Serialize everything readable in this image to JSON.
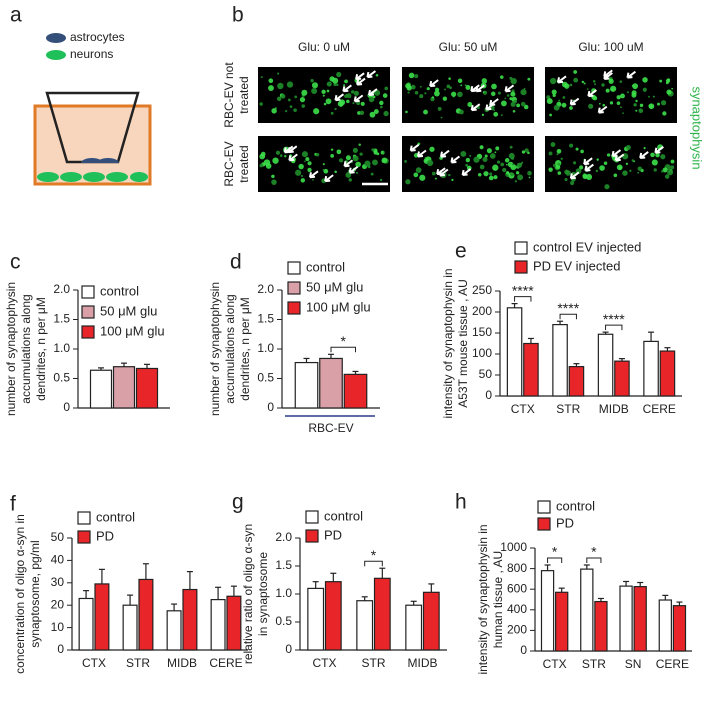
{
  "panel_labels": [
    "a",
    "b",
    "c",
    "d",
    "e",
    "f",
    "g",
    "h"
  ],
  "diagram": {
    "legend": [
      "astrocytes",
      "neurons"
    ]
  },
  "images": {
    "column_labels": [
      "Glu: 0 uM",
      "Glu: 50 uM",
      "Glu: 100 uM"
    ],
    "row_labels": [
      [
        "RBC-EV not",
        "treated"
      ],
      [
        "RBC-EV",
        "treated"
      ]
    ],
    "stain_label": "synaptophysin"
  },
  "chart_data": [
    {
      "type": "bar",
      "ylabel": [
        "number of synaptophysin",
        "accumulations  along",
        "dendrites, n per μM"
      ],
      "categories": [
        null
      ],
      "series": [
        {
          "name": "control",
          "color": "#ffffff",
          "values": [
            0.64
          ],
          "errors": [
            0.04
          ]
        },
        {
          "name": "50 μM glu",
          "color": "#d9a0a8",
          "values": [
            0.7
          ],
          "errors": [
            0.06
          ]
        },
        {
          "name": "100 μM glu",
          "color": "#e8262a",
          "values": [
            0.67
          ],
          "errors": [
            0.07
          ]
        }
      ],
      "ylim": [
        0,
        2
      ],
      "yticks": [
        0,
        0.5,
        {
          "value": 1,
          "label": "1.0"
        },
        1.5,
        {
          "value": 2,
          "label": "2.0"
        }
      ]
    },
    {
      "type": "bar",
      "ylabel": [
        "number of synaptophysin",
        "accumulations  along",
        "dendrites, n per μM"
      ],
      "xlabel": "RBC-EV",
      "categories": [
        null
      ],
      "series": [
        {
          "name": "control",
          "color": "#ffffff",
          "values": [
            0.77
          ],
          "errors": [
            0.07
          ]
        },
        {
          "name": "50 μM glu",
          "color": "#d9a0a8",
          "values": [
            0.84
          ],
          "errors": [
            0.07
          ]
        },
        {
          "name": "100 μM glu",
          "color": "#e8262a",
          "values": [
            0.57
          ],
          "errors": [
            0.05
          ]
        }
      ],
      "annotations": [
        {
          "label": "*",
          "series": [
            1,
            2
          ]
        }
      ],
      "ylim": [
        0,
        2
      ],
      "yticks": [
        0,
        0.5,
        {
          "value": 1,
          "label": "1.0"
        },
        1.5,
        {
          "value": 2,
          "label": "2.0"
        }
      ]
    },
    {
      "type": "bar",
      "ylabel": [
        "intensity of synaptophysin in",
        "A53T mouse tissue , AU"
      ],
      "categories": [
        "CTX",
        "STR",
        "MIDB",
        "CERE"
      ],
      "series": [
        {
          "name": "control EV injected",
          "color": "#ffffff",
          "values": [
            210,
            170,
            147,
            130
          ],
          "errors": [
            10,
            8,
            5,
            22
          ]
        },
        {
          "name": "PD EV injected",
          "color": "#e8262a",
          "values": [
            125,
            70,
            83,
            107
          ],
          "errors": [
            12,
            7,
            6,
            8
          ]
        }
      ],
      "annotations": [
        {
          "label": "****",
          "category": 0
        },
        {
          "label": "****",
          "category": 1
        },
        {
          "label": "****",
          "category": 2
        }
      ],
      "ylim": [
        0,
        250
      ],
      "yticks": [
        0,
        50,
        100,
        150,
        200,
        250
      ]
    },
    {
      "type": "bar",
      "ylabel": [
        "concentration of oligo α-syn in",
        "synaptosome, pg/ml"
      ],
      "categories": [
        "CTX",
        "STR",
        "MIDB",
        "CERE"
      ],
      "series": [
        {
          "name": "control",
          "color": "#ffffff",
          "values": [
            23,
            20,
            17.5,
            22.5
          ],
          "errors": [
            3.5,
            4.5,
            3,
            5.5
          ]
        },
        {
          "name": "PD",
          "color": "#e8262a",
          "values": [
            29.5,
            31.5,
            27,
            24
          ],
          "errors": [
            6.5,
            7,
            8,
            4.5
          ]
        }
      ],
      "ylim": [
        0,
        50
      ],
      "yticks": [
        0,
        10,
        20,
        30,
        40,
        50
      ]
    },
    {
      "type": "bar",
      "ylabel": [
        "relative ratio of oligo α-syn",
        "in synaptosome"
      ],
      "categories": [
        "CTX",
        "STR",
        "MIDB"
      ],
      "series": [
        {
          "name": "control",
          "color": "#ffffff",
          "values": [
            1.1,
            0.88,
            0.8
          ],
          "errors": [
            0.12,
            0.07,
            0.07
          ]
        },
        {
          "name": "PD",
          "color": "#e8262a",
          "values": [
            1.22,
            1.28,
            1.03
          ],
          "errors": [
            0.15,
            0.18,
            0.15
          ]
        }
      ],
      "annotations": [
        {
          "label": "*",
          "category": 1
        }
      ],
      "ylim": [
        0,
        2
      ],
      "yticks": [
        0,
        0.5,
        {
          "value": 1,
          "label": "1.0"
        },
        1.5,
        {
          "value": 2,
          "label": "2.0"
        }
      ]
    },
    {
      "type": "bar",
      "ylabel": [
        "intensity of synaptophysin in",
        "human tissue , AU"
      ],
      "categories": [
        "CTX",
        "STR",
        "SN",
        "CERE"
      ],
      "series": [
        {
          "name": "control",
          "color": "#ffffff",
          "values": [
            780,
            795,
            630,
            495
          ],
          "errors": [
            55,
            40,
            45,
            45
          ]
        },
        {
          "name": "PD",
          "color": "#e8262a",
          "values": [
            570,
            480,
            625,
            440
          ],
          "errors": [
            40,
            30,
            40,
            35
          ]
        }
      ],
      "annotations": [
        {
          "label": "*",
          "category": 0
        },
        {
          "label": "*",
          "category": 1
        }
      ],
      "ylim": [
        0,
        1000
      ],
      "yticks": [
        0,
        200,
        400,
        600,
        800,
        1000
      ]
    }
  ]
}
